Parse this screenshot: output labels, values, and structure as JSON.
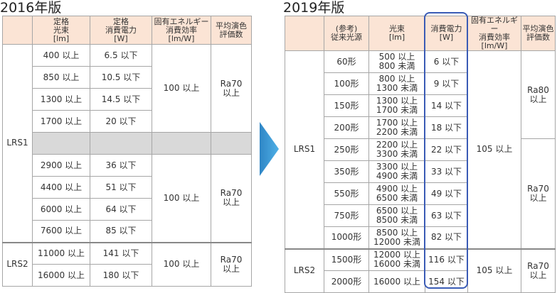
{
  "left": {
    "title": "2016年版",
    "header": [
      "",
      "定格\n光束\n[lm]",
      "定格\n消費電力\n[W]",
      "固有エネルギー\n消費効率\n[lm/W]",
      "平均演色\n評価数"
    ],
    "groups": [
      {
        "label": "LRS1",
        "blocks": [
          {
            "efficiency": "100 以上",
            "ra": "Ra70\n以上",
            "rows": [
              [
                "400 以上",
                "6.5 以下"
              ],
              [
                "850 以上",
                "10.5 以下"
              ],
              [
                "1300 以上",
                "14.5 以下"
              ],
              [
                "1700 以上",
                "20 以下"
              ]
            ]
          },
          {
            "efficiency": "100 以上",
            "ra": "Ra70\n以上",
            "rows": [
              [
                "2900 以上",
                "36 以下"
              ],
              [
                "4400 以上",
                "51 以下"
              ],
              [
                "6000 以上",
                "64 以下"
              ],
              [
                "7600 以上",
                "85 以下"
              ]
            ]
          }
        ]
      },
      {
        "label": "LRS2",
        "blocks": [
          {
            "efficiency": "100 以上",
            "ra": "Ra70\n以上",
            "rows": [
              [
                "11000 以上",
                "141 以下"
              ],
              [
                "16000 以上",
                "180 以下"
              ]
            ]
          }
        ]
      }
    ]
  },
  "right": {
    "title": "2019年版",
    "header": [
      "",
      "(参考)\n従来光源",
      "光束\n[lm]",
      "消費電力\n[W]",
      "固有エネルギー\n消費効率\n[lm/W]",
      "平均演色\n評価数"
    ],
    "groups": [
      {
        "label": "LRS1",
        "efficiency": "105 以上",
        "blocks": [
          {
            "ra": "Ra80\n以上",
            "rows": [
              [
                "60形",
                "500 以上\n800 未満",
                "6 以下"
              ],
              [
                "100形",
                "800 以上\n1300 未満",
                "9 以下"
              ],
              [
                "150形",
                "1300 以上\n1700 未満",
                "14 以下"
              ],
              [
                "200形",
                "1700 以上\n2200 未満",
                "18 以下"
              ]
            ]
          },
          {
            "ra": "Ra70\n以上",
            "rows": [
              [
                "250形",
                "2200 以上\n3300 未満",
                "22 以下"
              ],
              [
                "350形",
                "3300 以上\n4900 未満",
                "33 以下"
              ],
              [
                "550形",
                "4900 以上\n6500 未満",
                "49 以下"
              ],
              [
                "750形",
                "6500 以上\n8500 未満",
                "63 以下"
              ],
              [
                "1000形",
                "8500 以上\n12000 未満",
                "82 以下"
              ]
            ]
          }
        ]
      },
      {
        "label": "LRS2",
        "efficiency": "105 以上",
        "blocks": [
          {
            "ra": "Ra70\n以上",
            "rows": [
              [
                "1500形",
                "12000 以上\n16000 未満",
                "116 以下"
              ],
              [
                "2000形",
                "16000 以上",
                "154 以下"
              ]
            ]
          }
        ]
      }
    ]
  }
}
